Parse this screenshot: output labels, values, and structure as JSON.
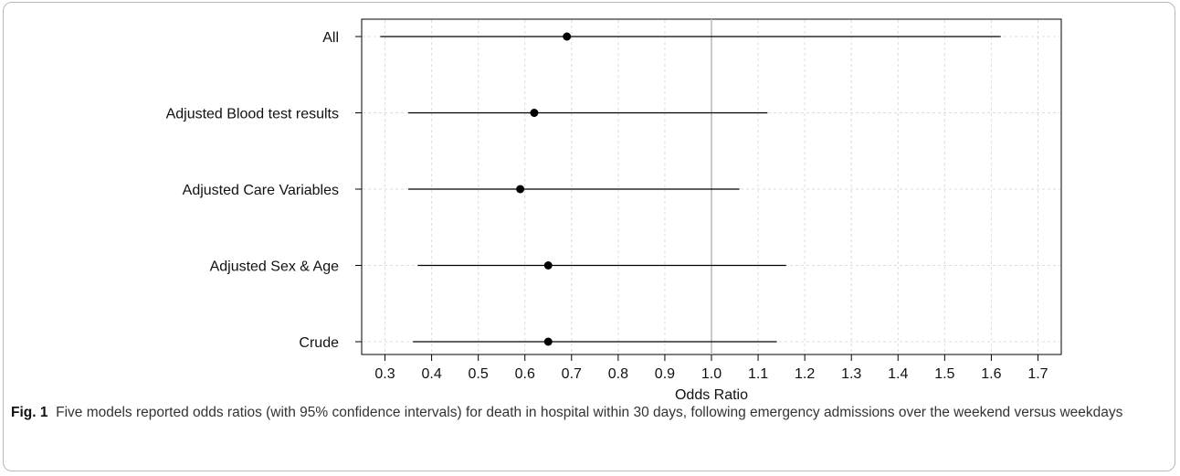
{
  "caption": {
    "label": "Fig. 1",
    "text": "Five models reported odds ratios (with 95% confidence intervals) for death in hospital within 30 days, following emergency admissions over the weekend versus weekdays"
  },
  "chart_data": {
    "type": "forest",
    "xlabel": "Odds Ratio",
    "xlim": [
      0.25,
      1.75
    ],
    "xticks": [
      0.3,
      0.4,
      0.5,
      0.6,
      0.7,
      0.8,
      0.9,
      1.0,
      1.1,
      1.2,
      1.3,
      1.4,
      1.5,
      1.6,
      1.7
    ],
    "xtick_labels": [
      "0.3",
      "0.4",
      "0.5",
      "0.6",
      "0.7",
      "0.8",
      "0.9",
      "1.0",
      "1.1",
      "1.2",
      "1.3",
      "1.4",
      "1.5",
      "1.6",
      "1.7"
    ],
    "reference_line": 1.0,
    "grid": true,
    "rows": [
      {
        "label": "All",
        "or": 0.69,
        "lower": 0.29,
        "upper": 1.62
      },
      {
        "label": "Adjusted Blood test results",
        "or": 0.62,
        "lower": 0.35,
        "upper": 1.12
      },
      {
        "label": "Adjusted Care Variables",
        "or": 0.59,
        "lower": 0.35,
        "upper": 1.06
      },
      {
        "label": "Adjusted Sex & Age",
        "or": 0.65,
        "lower": 0.37,
        "upper": 1.16
      },
      {
        "label": "Crude",
        "or": 0.65,
        "lower": 0.36,
        "upper": 1.14
      }
    ],
    "colors": {
      "reference_line": "#bdbdbd",
      "grid": "#dcdcdc",
      "marks": "#000000"
    }
  }
}
